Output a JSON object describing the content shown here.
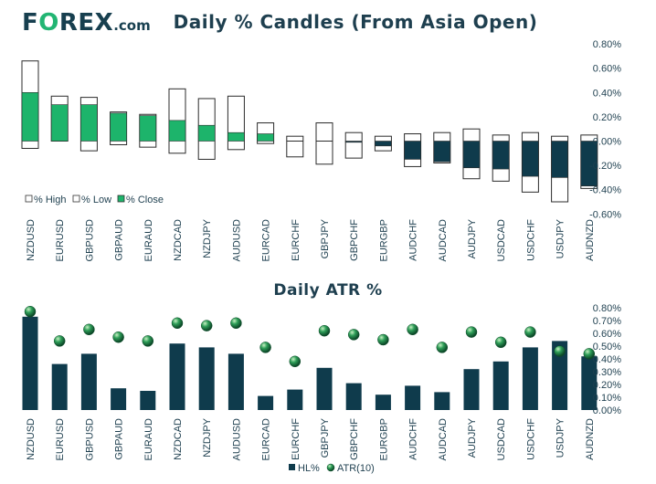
{
  "logo": {
    "prefix": "F",
    "o": "O",
    "suffix": "REX",
    "domain": ".com"
  },
  "chart_data": [
    {
      "type": "bar",
      "title": "Daily % Candles (From Asia Open)",
      "categories": [
        "NZDUSD",
        "EURUSD",
        "GBPUSD",
        "GBPAUD",
        "EURAUD",
        "NZDCAD",
        "NZDJPY",
        "AUDUSD",
        "EURCAD",
        "EURCHF",
        "GBPJPY",
        "GBPCHF",
        "EURGBP",
        "AUDCHF",
        "AUDCAD",
        "AUDJPY",
        "USDCAD",
        "USDCHF",
        "USDJPY",
        "AUDNZD"
      ],
      "high": [
        0.66,
        0.37,
        0.36,
        0.24,
        0.22,
        0.43,
        0.35,
        0.37,
        0.15,
        0.04,
        0.15,
        0.07,
        0.04,
        0.06,
        0.07,
        0.1,
        0.05,
        0.07,
        0.04,
        0.05
      ],
      "low": [
        -0.06,
        0.0,
        -0.08,
        -0.03,
        -0.05,
        -0.1,
        -0.15,
        -0.07,
        -0.02,
        -0.13,
        -0.19,
        -0.14,
        -0.08,
        -0.21,
        -0.18,
        -0.31,
        -0.33,
        -0.42,
        -0.5,
        -0.39
      ],
      "close": [
        0.4,
        0.3,
        0.3,
        0.23,
        0.21,
        0.17,
        0.13,
        0.07,
        0.06,
        0.0,
        0.0,
        -0.01,
        -0.04,
        -0.15,
        -0.17,
        -0.22,
        -0.23,
        -0.29,
        -0.3,
        -0.37
      ],
      "ylim": [
        -0.6,
        0.8
      ],
      "yticks": [
        "0.80%",
        "0.60%",
        "0.40%",
        "0.20%",
        "0.00%",
        "-0.20%",
        "-0.40%",
        "-0.60%"
      ],
      "legend": [
        "% High",
        "% Low",
        "% Close"
      ],
      "legend_position": "bottom-left",
      "colors": {
        "positive": "#1db46b",
        "negative": "#0f3b4c",
        "outline": "#2b2b2b"
      }
    },
    {
      "type": "bar",
      "title": "Daily ATR %",
      "categories": [
        "NZDUSD",
        "EURUSD",
        "GBPUSD",
        "GBPAUD",
        "EURAUD",
        "NZDCAD",
        "NZDJPY",
        "AUDUSD",
        "EURCAD",
        "EURCHF",
        "GBPJPY",
        "GBPCHF",
        "EURGBP",
        "AUDCHF",
        "AUDCAD",
        "AUDJPY",
        "USDCAD",
        "USDCHF",
        "USDJPY",
        "AUDNZD"
      ],
      "series": [
        {
          "name": "HL%",
          "type": "bar",
          "values": [
            0.73,
            0.36,
            0.44,
            0.17,
            0.15,
            0.52,
            0.49,
            0.44,
            0.11,
            0.16,
            0.33,
            0.21,
            0.12,
            0.19,
            0.14,
            0.32,
            0.38,
            0.49,
            0.54,
            0.42
          ]
        },
        {
          "name": "ATR(10)",
          "type": "scatter",
          "values": [
            0.77,
            0.54,
            0.63,
            0.57,
            0.54,
            0.68,
            0.66,
            0.68,
            0.49,
            0.38,
            0.62,
            0.59,
            0.55,
            0.63,
            0.49,
            0.61,
            0.53,
            0.61,
            0.46,
            0.44
          ]
        }
      ],
      "ylim": [
        0,
        0.8
      ],
      "yticks": [
        "0.80%",
        "0.70%",
        "0.60%",
        "0.50%",
        "0.40%",
        "0.30%",
        "0.20%",
        "0.10%",
        "0.00%"
      ],
      "legend_position": "bottom-center",
      "colors": {
        "bar": "#0f3b4c",
        "marker": "#1e8c4a"
      }
    }
  ]
}
